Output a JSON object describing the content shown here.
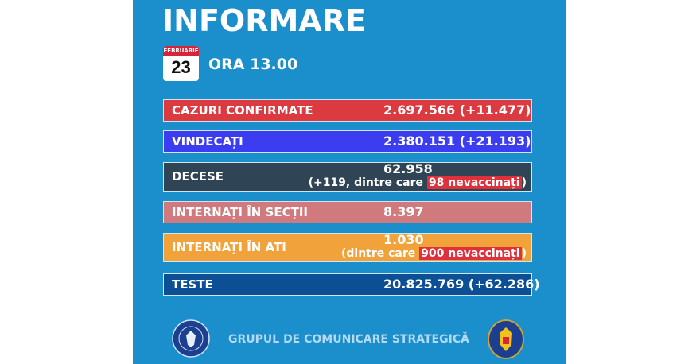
{
  "title": "INFORMARE",
  "date": {
    "month": "FEBRUARIE",
    "day": "23"
  },
  "time": "ORA 13.00",
  "rows": [
    {
      "label": "CAZURI CONFIRMATE",
      "value": "2.697.566 (+11.477)",
      "color": "#dc3a41"
    },
    {
      "label": "VINDECAȚI",
      "value": "2.380.151 (+21.193)",
      "color": "#3c3cf0"
    },
    {
      "label": "DECESE",
      "value": "62.958",
      "sub_prefix": "(+119, dintre care ",
      "sub_highlight": "98 nevaccinați",
      "sub_suffix": ")",
      "color": "#2f4556"
    },
    {
      "label": "INTERNAȚI ÎN SECȚII",
      "value": "8.397",
      "color": "#d17a7e"
    },
    {
      "label": "INTERNAȚI ÎN ATI",
      "value": "1.030",
      "sub_prefix": "(dintre care ",
      "sub_highlight": "900 nevaccinați",
      "sub_suffix": ")",
      "color": "#f2a23a"
    },
    {
      "label": "TESTE",
      "value": "20.825.769 (+62.286)",
      "color": "#0c4f94"
    }
  ],
  "footer": "GRUPUL DE COMUNICARE STRATEGICĂ",
  "logos": {
    "left": "GUVERNUL ROMÂNIEI",
    "right": "ministry-coat-of-arms"
  }
}
